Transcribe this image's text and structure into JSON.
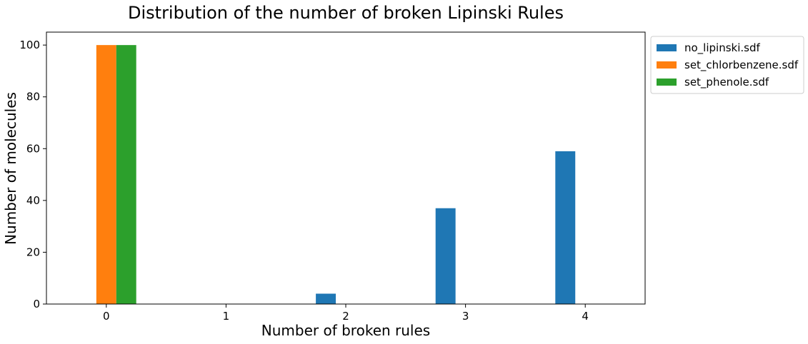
{
  "chart_data": {
    "type": "bar",
    "title": "Distribution of the number of broken Lipinski Rules",
    "xlabel": "Number of broken rules",
    "ylabel": "Number of molecules",
    "categories": [
      "0",
      "1",
      "2",
      "3",
      "4"
    ],
    "series": [
      {
        "name": "no_lipinski.sdf",
        "values": [
          0,
          0,
          4,
          37,
          59
        ],
        "color": "#1f77b4"
      },
      {
        "name": "set_chlorbenzene.sdf",
        "values": [
          100,
          0,
          0,
          0,
          0
        ],
        "color": "#ff7f0e"
      },
      {
        "name": "set_phenole.sdf",
        "values": [
          100,
          0,
          0,
          0,
          0
        ],
        "color": "#2ca02c"
      }
    ],
    "ylim": [
      0,
      105
    ],
    "yticks": [
      0,
      20,
      40,
      60,
      80,
      100
    ],
    "grid": false,
    "legend_position": "outside-top-right"
  }
}
